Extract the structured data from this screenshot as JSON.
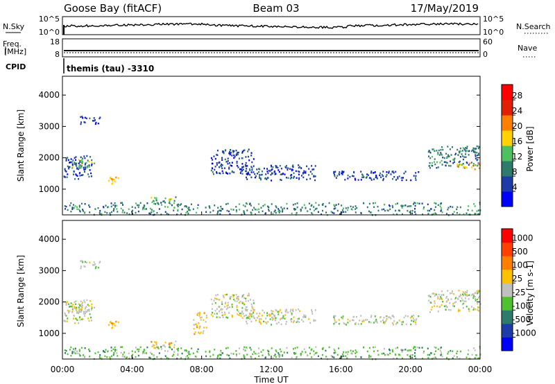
{
  "header": {
    "station": "Goose Bay (fitACF)",
    "beam": "Beam 03",
    "date": "17/May/2019"
  },
  "nsky_panel": {
    "left_label": "N.Sky",
    "left_ticks": [
      "10^5",
      "10^0"
    ],
    "right_label": "N.Search",
    "right_ticks": [
      "10^5",
      "10^0"
    ]
  },
  "freq_panel": {
    "left_label_1": "Freq.",
    "left_label_2": "[MHz]",
    "left_ticks": [
      "18",
      "8"
    ],
    "right_label": "Nave",
    "right_ticks": [
      "60",
      "0"
    ]
  },
  "cpid": {
    "label": "CPID",
    "value": "themis (tau) -3310"
  },
  "chart_data": [
    {
      "type": "heatmap",
      "name": "power",
      "ylabel": "Slant Range [km]",
      "ylim": [
        180,
        4600
      ],
      "yticks": [
        "4000",
        "3000",
        "2000",
        "1000"
      ],
      "xlim": [
        0,
        24
      ],
      "colorbar": {
        "label": "Power [dB]",
        "ticks": [
          "28",
          "24",
          "20",
          "16",
          "12",
          "8",
          "4"
        ],
        "colors": [
          "#0000ff",
          "#1e3ca8",
          "#2e7a6b",
          "#4fc060",
          "#ffd200",
          "#ff8000",
          "#e02000",
          "#ff0000"
        ]
      },
      "regions": [
        {
          "t": [
            0.0,
            1.7
          ],
          "r": [
            1350,
            2100
          ],
          "level": 1
        },
        {
          "t": [
            0.5,
            1.8
          ],
          "r": [
            1700,
            2000
          ],
          "level": 3
        },
        {
          "t": [
            1.0,
            2.2
          ],
          "r": [
            3100,
            3350
          ],
          "level": 1
        },
        {
          "t": [
            2.6,
            3.2
          ],
          "r": [
            1150,
            1400
          ],
          "level": 4
        },
        {
          "t": [
            5.0,
            6.5
          ],
          "r": [
            550,
            800
          ],
          "level": 3
        },
        {
          "t": [
            8.5,
            11.0
          ],
          "r": [
            1500,
            2300
          ],
          "level": 1
        },
        {
          "t": [
            10.5,
            14.5
          ],
          "r": [
            1300,
            1800
          ],
          "level": 1
        },
        {
          "t": [
            15.5,
            20.5
          ],
          "r": [
            1300,
            1600
          ],
          "level": 1
        },
        {
          "t": [
            21.0,
            24.0
          ],
          "r": [
            1700,
            2400
          ],
          "level": 2
        },
        {
          "t": [
            22.5,
            24.0
          ],
          "r": [
            1650,
            1850
          ],
          "level": 4
        },
        {
          "t": [
            0.0,
            24.0
          ],
          "r": [
            200,
            600
          ],
          "level": 2
        }
      ]
    },
    {
      "type": "heatmap",
      "name": "velocity",
      "ylabel": "Slant Range [km]",
      "ylim": [
        180,
        4600
      ],
      "yticks": [
        "4000",
        "3000",
        "2000",
        "1000"
      ],
      "xlim": [
        0,
        24
      ],
      "xticks": [
        "00:00",
        "04:00",
        "08:00",
        "12:00",
        "16:00",
        "20:00",
        "00:00"
      ],
      "xlabel": "Time UT",
      "colorbar": {
        "label": "Velocity [m s-1]",
        "ticks": [
          "1000",
          "500",
          "100",
          "25",
          "-25",
          "-100",
          "-500",
          "-1000"
        ],
        "colors": [
          "#0000ff",
          "#1e3ca8",
          "#2e7a6b",
          "#4fc030",
          "#c0c0c0",
          "#ffc000",
          "#ff8000",
          "#ff4000",
          "#ff0000"
        ]
      },
      "regions": [
        {
          "t": [
            0.0,
            1.7
          ],
          "r": [
            1350,
            2100
          ],
          "level": 4
        },
        {
          "t": [
            0.5,
            1.8
          ],
          "r": [
            1700,
            2000
          ],
          "level": 4
        },
        {
          "t": [
            1.0,
            2.2
          ],
          "r": [
            3100,
            3350
          ],
          "level": 4
        },
        {
          "t": [
            2.6,
            3.2
          ],
          "r": [
            1150,
            1400
          ],
          "level": 5
        },
        {
          "t": [
            5.0,
            6.5
          ],
          "r": [
            550,
            800
          ],
          "level": 5
        },
        {
          "t": [
            7.5,
            8.3
          ],
          "r": [
            1000,
            1700
          ],
          "level": 5
        },
        {
          "t": [
            8.5,
            11.0
          ],
          "r": [
            1500,
            2300
          ],
          "level": 4
        },
        {
          "t": [
            10.5,
            14.5
          ],
          "r": [
            1300,
            1800
          ],
          "level": 4
        },
        {
          "t": [
            15.5,
            20.5
          ],
          "r": [
            1300,
            1600
          ],
          "level": 4
        },
        {
          "t": [
            21.0,
            24.0
          ],
          "r": [
            1700,
            2400
          ],
          "level": 4
        },
        {
          "t": [
            0.0,
            24.0
          ],
          "r": [
            200,
            600
          ],
          "level": 3
        }
      ]
    }
  ]
}
